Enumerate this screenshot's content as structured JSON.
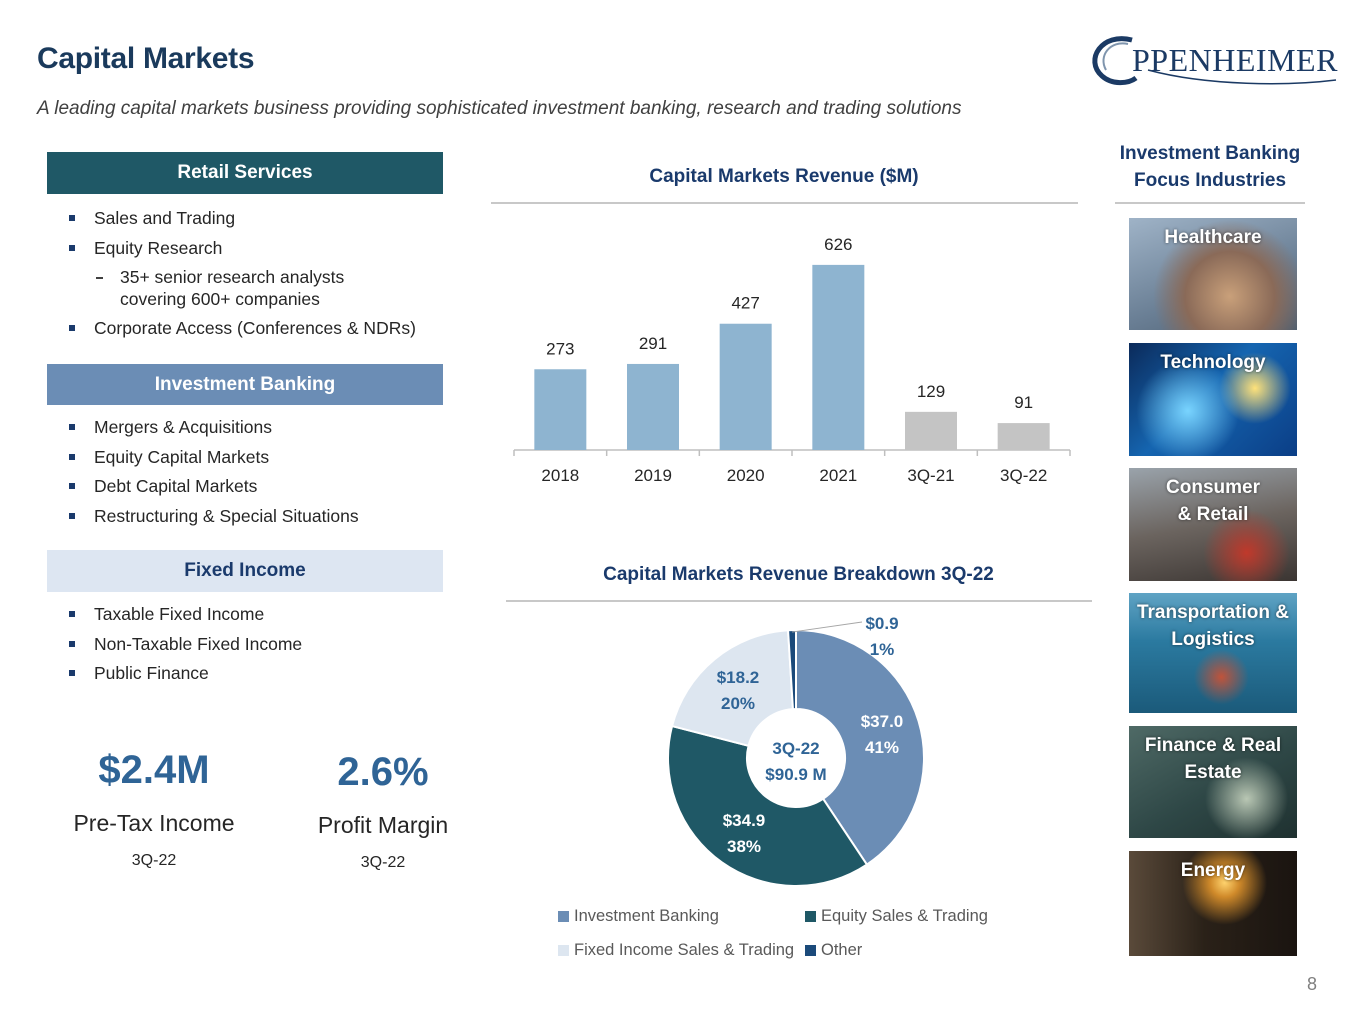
{
  "header": {
    "title": "Capital Markets",
    "subtitle": "A leading capital markets business providing sophisticated investment banking, research and trading solutions",
    "logo_text": "PPENHEIMER"
  },
  "sections": {
    "retail": {
      "title": "Retail Services",
      "items": [
        "Sales and Trading",
        "Equity Research",
        "35+ senior research analysts covering 600+ companies",
        "Corporate Access (Conferences & NDRs)"
      ]
    },
    "investment_banking": {
      "title": "Investment Banking",
      "items": [
        "Mergers & Acquisitions",
        "Equity Capital Markets",
        "Debt Capital Markets",
        "Restructuring & Special Situations"
      ]
    },
    "fixed_income": {
      "title": "Fixed Income",
      "items": [
        "Taxable Fixed Income",
        "Non-Taxable Fixed Income",
        "Public Finance"
      ]
    }
  },
  "kpis": [
    {
      "value": "$2.4M",
      "label": "Pre-Tax Income",
      "period": "3Q-22"
    },
    {
      "value": "2.6%",
      "label": "Profit Margin",
      "period": "3Q-22"
    }
  ],
  "chart_data": [
    {
      "type": "bar",
      "title": "Capital Markets Revenue ($M)",
      "categories": [
        "2018",
        "2019",
        "2020",
        "2021",
        "3Q-21",
        "3Q-22"
      ],
      "values": [
        273,
        291,
        427,
        626,
        129,
        91
      ],
      "data_labels": [
        "273",
        "291",
        "427",
        "626",
        "129",
        "91"
      ],
      "colors": [
        "#8eb4d0",
        "#8eb4d0",
        "#8eb4d0",
        "#8eb4d0",
        "#c4c4c4",
        "#c4c4c4"
      ],
      "xlabel": "",
      "ylabel": "",
      "ylim": [
        0,
        700
      ],
      "grid": false
    },
    {
      "type": "pie",
      "title": "Capital Markets Revenue Breakdown 3Q-22",
      "center_label": [
        "3Q-22",
        "$90.9 M"
      ],
      "slices": [
        {
          "name": "Investment Banking",
          "value": 37.0,
          "label": "$37.0",
          "pct": "41%",
          "color": "#6b8db5"
        },
        {
          "name": "Equity Sales & Trading",
          "value": 34.9,
          "label": "$34.9",
          "pct": "38%",
          "color": "#1f5866"
        },
        {
          "name": "Fixed Income Sales & Trading",
          "value": 18.2,
          "label": "$18.2",
          "pct": "20%",
          "color": "#dde6f0"
        },
        {
          "name": "Other",
          "value": 0.9,
          "label": "$0.9",
          "pct": "1%",
          "color": "#1b4a7a"
        }
      ],
      "legend_position": "bottom"
    }
  ],
  "industries": {
    "title": "Investment Banking Focus Industries",
    "items": [
      "Healthcare",
      "Technology",
      "Consumer & Retail",
      "Transportation & Logistics",
      "Finance & Real Estate",
      "Energy"
    ]
  },
  "page_number": "8"
}
